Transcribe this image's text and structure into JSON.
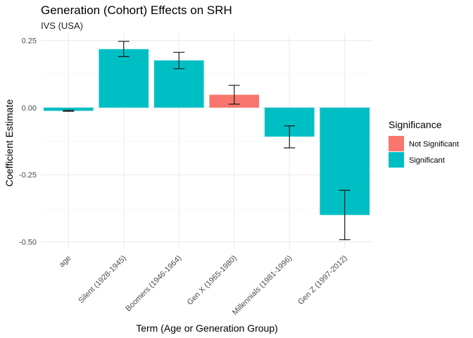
{
  "chart_data": {
    "type": "bar",
    "title": "Generation (Cohort) Effects on SRH",
    "subtitle": "IVS (USA)",
    "xlabel": "Term (Age or Generation Group)",
    "ylabel": "Coefficient Estimate",
    "categories": [
      "age",
      "Silent (1928-1945)",
      "Boomers (1946-1964)",
      "Gen X (1965-1980)",
      "Millennials (1981-1996)",
      "Gen Z (1997-2012)"
    ],
    "values": [
      -0.012,
      0.218,
      0.176,
      0.048,
      -0.108,
      -0.4
    ],
    "error_low": [
      -0.014,
      0.19,
      0.145,
      0.013,
      -0.15,
      -0.492
    ],
    "error_high": [
      -0.01,
      0.247,
      0.206,
      0.083,
      -0.068,
      -0.308
    ],
    "significance": [
      "Significant",
      "Significant",
      "Significant",
      "Not Significant",
      "Significant",
      "Significant"
    ],
    "ylim": [
      -0.525,
      0.275
    ],
    "yticks": [
      0.25,
      0.0,
      -0.25,
      -0.5
    ],
    "ytick_labels": [
      "0.25",
      "0.00",
      "-0.25",
      "-0.50"
    ],
    "grid": true,
    "legend": {
      "title": "Significance",
      "position": "right",
      "entries": [
        {
          "label": "Not Significant",
          "color": "#F8766D"
        },
        {
          "label": "Significant",
          "color": "#00BFC4"
        }
      ]
    }
  }
}
